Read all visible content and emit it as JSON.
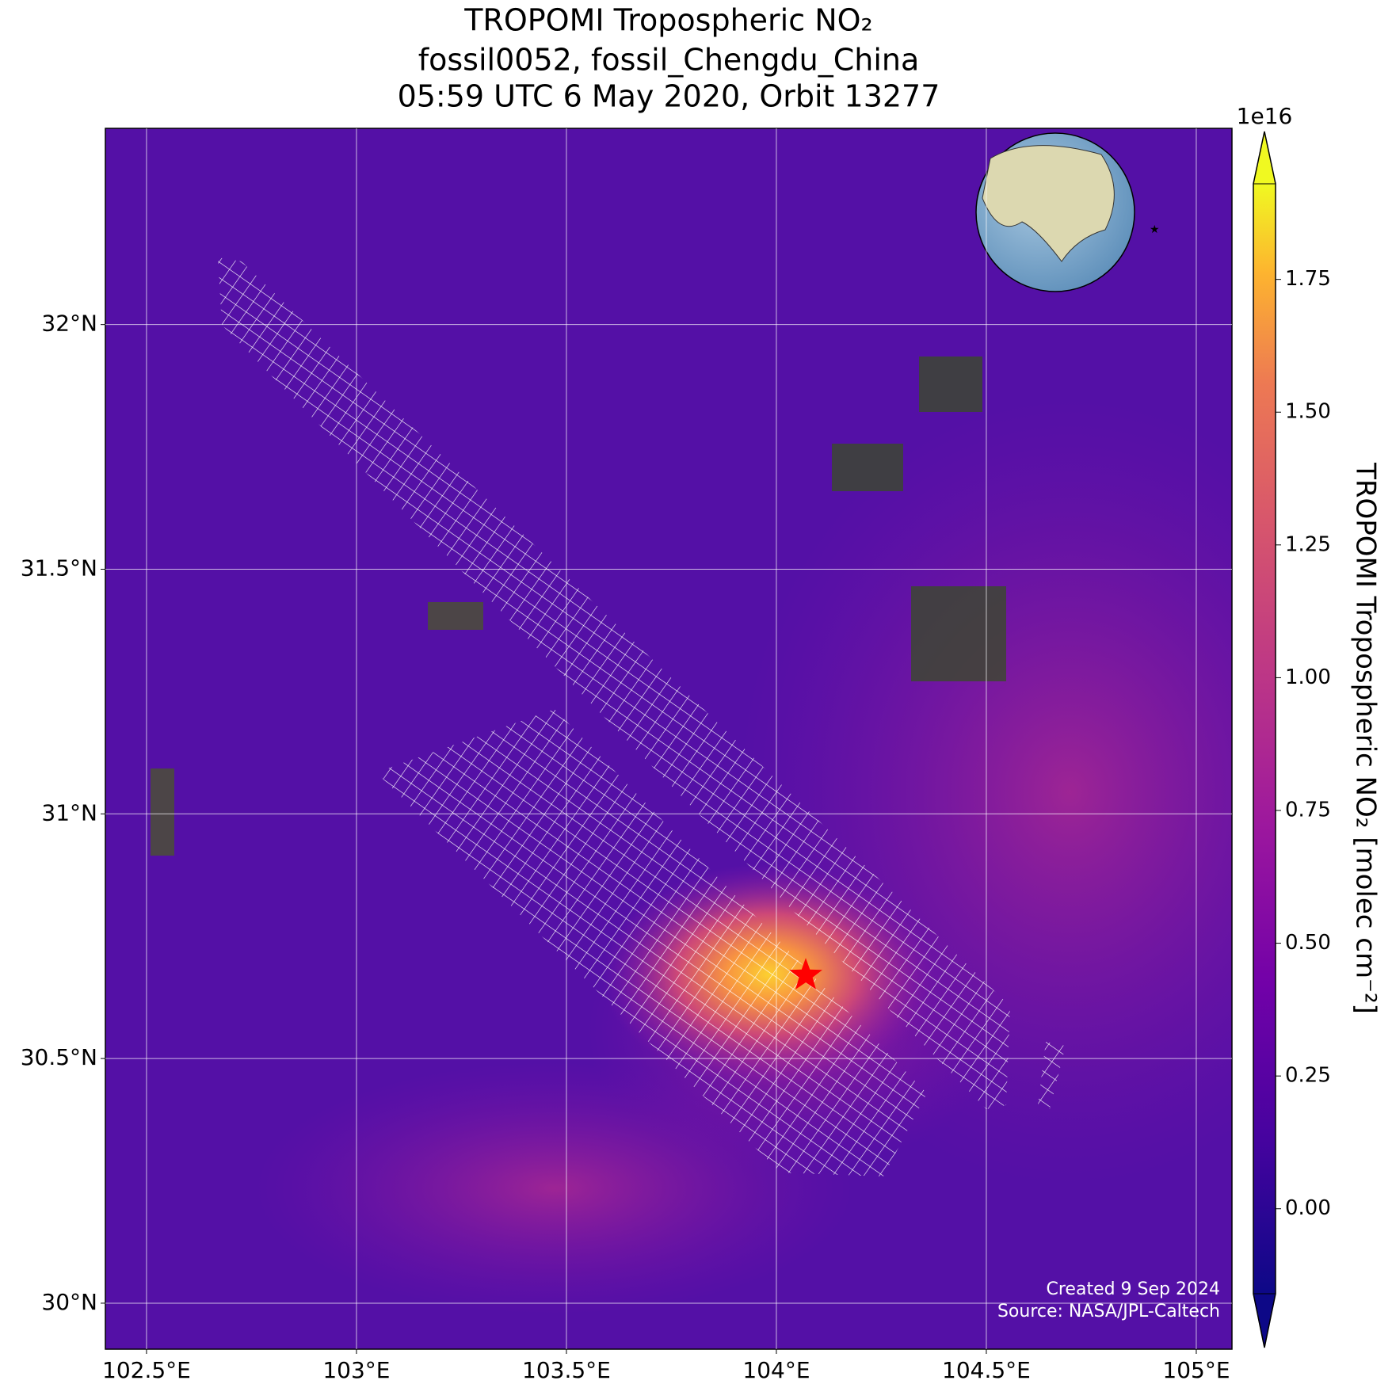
{
  "chart_data": {
    "type": "map",
    "title": [
      "TROPOMI Tropospheric NO₂",
      "fossil0052, fossil_Chengdu_China",
      "05:59 UTC 6 May 2020, Orbit 13277"
    ],
    "xlim": [
      102.402,
      105.085
    ],
    "ylim": [
      29.906,
      32.401
    ],
    "xticks": [
      {
        "value": 102.5,
        "label": "102.5°E"
      },
      {
        "value": 103,
        "label": "103°E"
      },
      {
        "value": 103.5,
        "label": "103.5°E"
      },
      {
        "value": 104,
        "label": "104°E"
      },
      {
        "value": 104.5,
        "label": "104.5°E"
      },
      {
        "value": 105,
        "label": "105°E"
      }
    ],
    "yticks": [
      {
        "value": 30,
        "label": "30°N"
      },
      {
        "value": 30.5,
        "label": "30.5°N"
      },
      {
        "value": 31,
        "label": "31°N"
      },
      {
        "value": 31.5,
        "label": "31.5°N"
      },
      {
        "value": 32,
        "label": "32°N"
      }
    ],
    "grid": true,
    "colorbar": {
      "label": "TROPOMI Tropospheric NO₂ [molec cm⁻²]",
      "exponent": "1e16",
      "colormap": "plasma",
      "lim": [
        -0.16,
        1.93
      ],
      "ticks": [
        {
          "value": 0,
          "label": "0.00"
        },
        {
          "value": 0.25,
          "label": "0.25"
        },
        {
          "value": 0.5,
          "label": "0.50"
        },
        {
          "value": 0.75,
          "label": "0.75"
        },
        {
          "value": 1,
          "label": "1.00"
        },
        {
          "value": 1.25,
          "label": "1.25"
        },
        {
          "value": 1.5,
          "label": "1.50"
        },
        {
          "value": 1.75,
          "label": "1.75"
        }
      ]
    },
    "marker": {
      "lon": 104.07,
      "lat": 30.67,
      "color": "#ff0000"
    },
    "annotations": [
      "Created 9 Sep 2024",
      "Source: NASA/JPL-Caltech"
    ]
  }
}
